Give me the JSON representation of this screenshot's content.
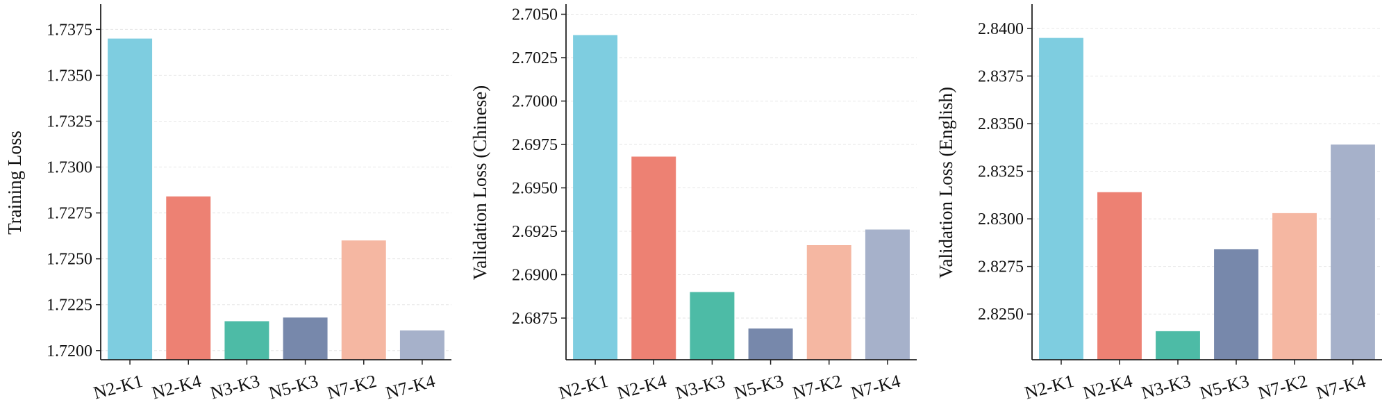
{
  "palette": {
    "N2-K1": "#7ECDE0",
    "N2-K4": "#ED8173",
    "N3-K3": "#4DBBA6",
    "N5-K3": "#7788AB",
    "N7-K2": "#F5B7A2",
    "N7-K4": "#A6B1CA"
  },
  "chart_data": [
    {
      "type": "bar",
      "categories": [
        "N2-K1",
        "N2-K4",
        "N3-K3",
        "N5-K3",
        "N7-K2",
        "N7-K4"
      ],
      "values": [
        1.737,
        1.7284,
        1.7216,
        1.7218,
        1.726,
        1.7211
      ],
      "ylabel": "Training Loss",
      "xlabel": "",
      "ylim": [
        1.7195,
        1.7388
      ],
      "yticks": [
        "1.7200",
        "1.7225",
        "1.7250",
        "1.7275",
        "1.7300",
        "1.7325",
        "1.7350",
        "1.7375"
      ],
      "grid": "y"
    },
    {
      "type": "bar",
      "categories": [
        "N2-K1",
        "N2-K4",
        "N3-K3",
        "N5-K3",
        "N7-K2",
        "N7-K4"
      ],
      "values": [
        2.7038,
        2.6968,
        2.689,
        2.6869,
        2.6917,
        2.6926
      ],
      "ylabel": "Validation Loss (Chinese)",
      "xlabel": "",
      "ylim": [
        2.6851,
        2.7055
      ],
      "yticks": [
        "2.6875",
        "2.6900",
        "2.6925",
        "2.6950",
        "2.6975",
        "2.7000",
        "2.7025",
        "2.7050"
      ],
      "grid": "y"
    },
    {
      "type": "bar",
      "categories": [
        "N2-K1",
        "N2-K4",
        "N3-K3",
        "N5-K3",
        "N7-K2",
        "N7-K4"
      ],
      "values": [
        2.8395,
        2.8314,
        2.8241,
        2.8284,
        2.8303,
        2.8339
      ],
      "ylabel": "Validation Loss (English)",
      "xlabel": "",
      "ylim": [
        2.8226,
        2.8412
      ],
      "yticks": [
        "2.8250",
        "2.8275",
        "2.8300",
        "2.8325",
        "2.8350",
        "2.8375",
        "2.8400"
      ],
      "grid": "y"
    }
  ]
}
